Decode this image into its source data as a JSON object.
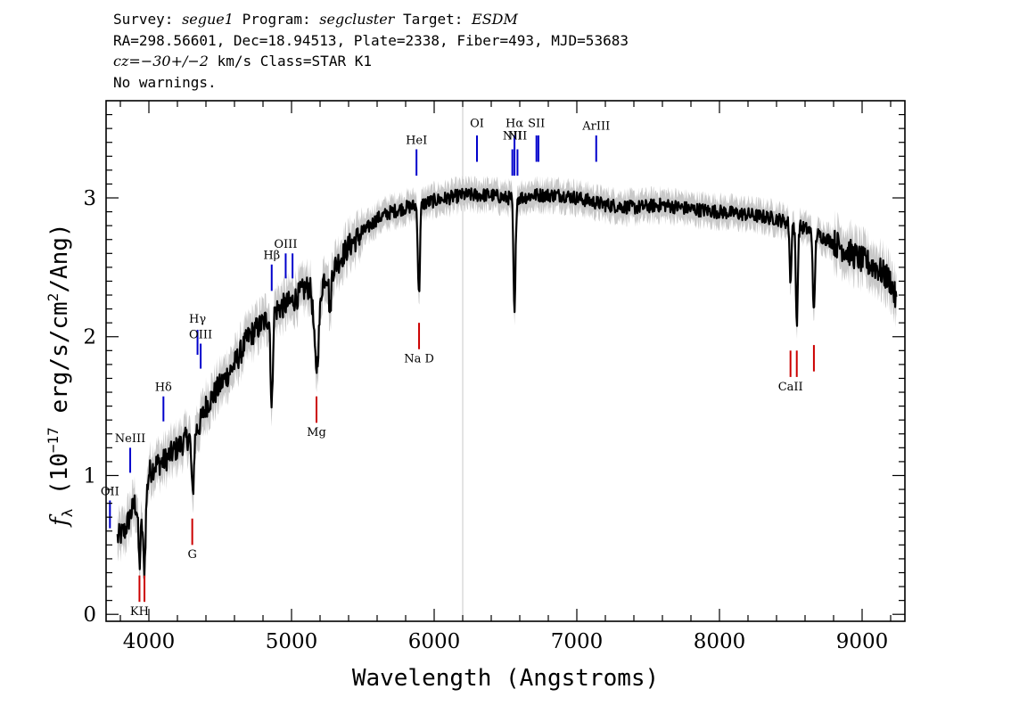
{
  "header": {
    "survey_label": "Survey: ",
    "survey": "segue1",
    "program_label": " Program: ",
    "program": "segcluster",
    "target_label": " Target: ",
    "target": "ESDM",
    "coords": "RA=298.56601, Dec=18.94513, Plate=2338, Fiber=493, MJD=53683",
    "cz_prefix": "cz=",
    "cz_value": "−30+/−2",
    "cz_units": " km/s Class=STAR K1",
    "warnings": "No warnings."
  },
  "chart_data": {
    "type": "line",
    "xlabel": "Wavelength (Angstroms)",
    "ylabel_main": "f",
    "ylabel_sub": "λ",
    "ylabel_paren": " (10",
    "ylabel_exp": "−17",
    "ylabel_units": " erg/s/cm",
    "ylabel_exp2": "2",
    "ylabel_end": "/Ang)",
    "xlim": [
      3700,
      9300
    ],
    "ylim": [
      -0.05,
      3.7
    ],
    "x_ticks": [
      4000,
      5000,
      6000,
      7000,
      8000,
      9000
    ],
    "x_tick_labels": [
      "4000",
      "5000",
      "6000",
      "7000",
      "8000",
      "9000"
    ],
    "y_ticks": [
      0,
      1,
      2,
      3
    ],
    "y_tick_labels": [
      "0",
      "1",
      "2",
      "3"
    ],
    "colors": {
      "flux": "#000000",
      "error": "#c8c8c8",
      "emission": "#0000cc",
      "absorption": "#cc0000",
      "marker_line": "#c8c8c8"
    },
    "vertical_marker_x": 6200,
    "continuum": {
      "x": [
        3780,
        3830,
        3900,
        3960,
        4000,
        4050,
        4100,
        4150,
        4200,
        4250,
        4300,
        4350,
        4400,
        4500,
        4600,
        4700,
        4800,
        4900,
        5000,
        5100,
        5200,
        5300,
        5400,
        5500,
        5600,
        5700,
        5800,
        5900,
        6000,
        6100,
        6200,
        6300,
        6400,
        6500,
        6600,
        6700,
        6800,
        6900,
        7000,
        7200,
        7400,
        7600,
        7800,
        8000,
        8200,
        8400,
        8600,
        8800,
        9000,
        9100,
        9200,
        9240
      ],
      "y": [
        0.55,
        0.6,
        0.8,
        0.65,
        1.02,
        1.08,
        1.1,
        1.15,
        1.2,
        1.25,
        1.3,
        1.35,
        1.5,
        1.65,
        1.8,
        2.0,
        2.1,
        2.2,
        2.25,
        2.35,
        2.4,
        2.5,
        2.65,
        2.75,
        2.85,
        2.9,
        2.93,
        2.95,
        2.98,
        3.0,
        3.02,
        3.02,
        3.02,
        3.0,
        3.0,
        3.02,
        3.02,
        3.02,
        3.0,
        2.95,
        2.93,
        2.95,
        2.92,
        2.9,
        2.88,
        2.85,
        2.78,
        2.68,
        2.55,
        2.5,
        2.4,
        2.25
      ]
    },
    "absorption_dips": [
      {
        "x": 3934,
        "depth": 0.35,
        "width": 10
      },
      {
        "x": 3969,
        "depth": 0.4,
        "width": 10
      },
      {
        "x": 4307,
        "depth": 0.45,
        "width": 12
      },
      {
        "x": 4861,
        "depth": 0.7,
        "width": 10
      },
      {
        "x": 5175,
        "depth": 0.6,
        "width": 25
      },
      {
        "x": 5270,
        "depth": 0.3,
        "width": 10
      },
      {
        "x": 5893,
        "depth": 0.65,
        "width": 10
      },
      {
        "x": 6563,
        "depth": 0.85,
        "width": 10
      },
      {
        "x": 8498,
        "depth": 0.45,
        "width": 8
      },
      {
        "x": 8542,
        "depth": 0.7,
        "width": 10
      },
      {
        "x": 8662,
        "depth": 0.6,
        "width": 10
      }
    ],
    "emission_lines": [
      {
        "label": "OII",
        "x": 3727,
        "y_top": 0.82,
        "y_bot": 0.62,
        "label_y": 0.86
      },
      {
        "label": "NeIII",
        "x": 3869,
        "y_top": 1.2,
        "y_bot": 1.02,
        "label_y": 1.24
      },
      {
        "label": "Hδ",
        "x": 4102,
        "y_top": 1.57,
        "y_bot": 1.39,
        "label_y": 1.61
      },
      {
        "label": "Hγ",
        "x": 4341,
        "y_top": 2.05,
        "y_bot": 1.87,
        "label_y": 2.1
      },
      {
        "label": "OIII",
        "x": 4363,
        "y_top": 1.95,
        "y_bot": 1.77,
        "label_y": 1.99
      },
      {
        "label": "Hβ",
        "x": 4861,
        "y_top": 2.52,
        "y_bot": 2.33,
        "label_y": 2.56
      },
      {
        "label": "OIII",
        "x": 4959,
        "y_top": 2.6,
        "y_bot": 2.42,
        "label_y": 2.64
      },
      {
        "label": "",
        "x": 5007,
        "y_top": 2.6,
        "y_bot": 2.42,
        "label_y": 0
      },
      {
        "label": "HeI",
        "x": 5876,
        "y_top": 3.35,
        "y_bot": 3.16,
        "label_y": 3.39
      },
      {
        "label": "OI",
        "x": 6300,
        "y_top": 3.45,
        "y_bot": 3.26,
        "label_y": 3.51
      },
      {
        "label": "NII",
        "x": 6548,
        "y_top": 3.35,
        "y_bot": 3.16,
        "label_y": 3.42
      },
      {
        "label": "Hα",
        "x": 6563,
        "y_top": 3.45,
        "y_bot": 3.16,
        "label_y": 3.51
      },
      {
        "label": "NII",
        "x": 6584,
        "y_top": 3.35,
        "y_bot": 3.16,
        "label_y": 3.42
      },
      {
        "label": "SII",
        "x": 6717,
        "y_top": 3.45,
        "y_bot": 3.26,
        "label_y": 3.51
      },
      {
        "label": "",
        "x": 6731,
        "y_top": 3.45,
        "y_bot": 3.26,
        "label_y": 0
      },
      {
        "label": "ArIII",
        "x": 7136,
        "y_top": 3.45,
        "y_bot": 3.26,
        "label_y": 3.49
      }
    ],
    "absorption_lines": [
      {
        "label": "KH",
        "x": 3934,
        "y_top": 0.28,
        "y_bot": 0.09,
        "label_y": 0.02
      },
      {
        "label": "",
        "x": 3969,
        "y_top": 0.28,
        "y_bot": 0.09,
        "label_y": 0
      },
      {
        "label": "G",
        "x": 4304,
        "y_top": 0.69,
        "y_bot": 0.5,
        "label_y": 0.43
      },
      {
        "label": "Mg",
        "x": 5175,
        "y_top": 1.57,
        "y_bot": 1.38,
        "label_y": 1.31
      },
      {
        "label": "Na D",
        "x": 5894,
        "y_top": 2.1,
        "y_bot": 1.91,
        "label_y": 1.84
      },
      {
        "label": "CaII",
        "x": 8498,
        "y_top": 1.9,
        "y_bot": 1.71,
        "label_y": 1.64
      },
      {
        "label": "",
        "x": 8542,
        "y_top": 1.9,
        "y_bot": 1.71,
        "label_y": 0
      },
      {
        "label": "",
        "x": 8662,
        "y_top": 1.94,
        "y_bot": 1.75,
        "label_y": 0
      }
    ]
  }
}
